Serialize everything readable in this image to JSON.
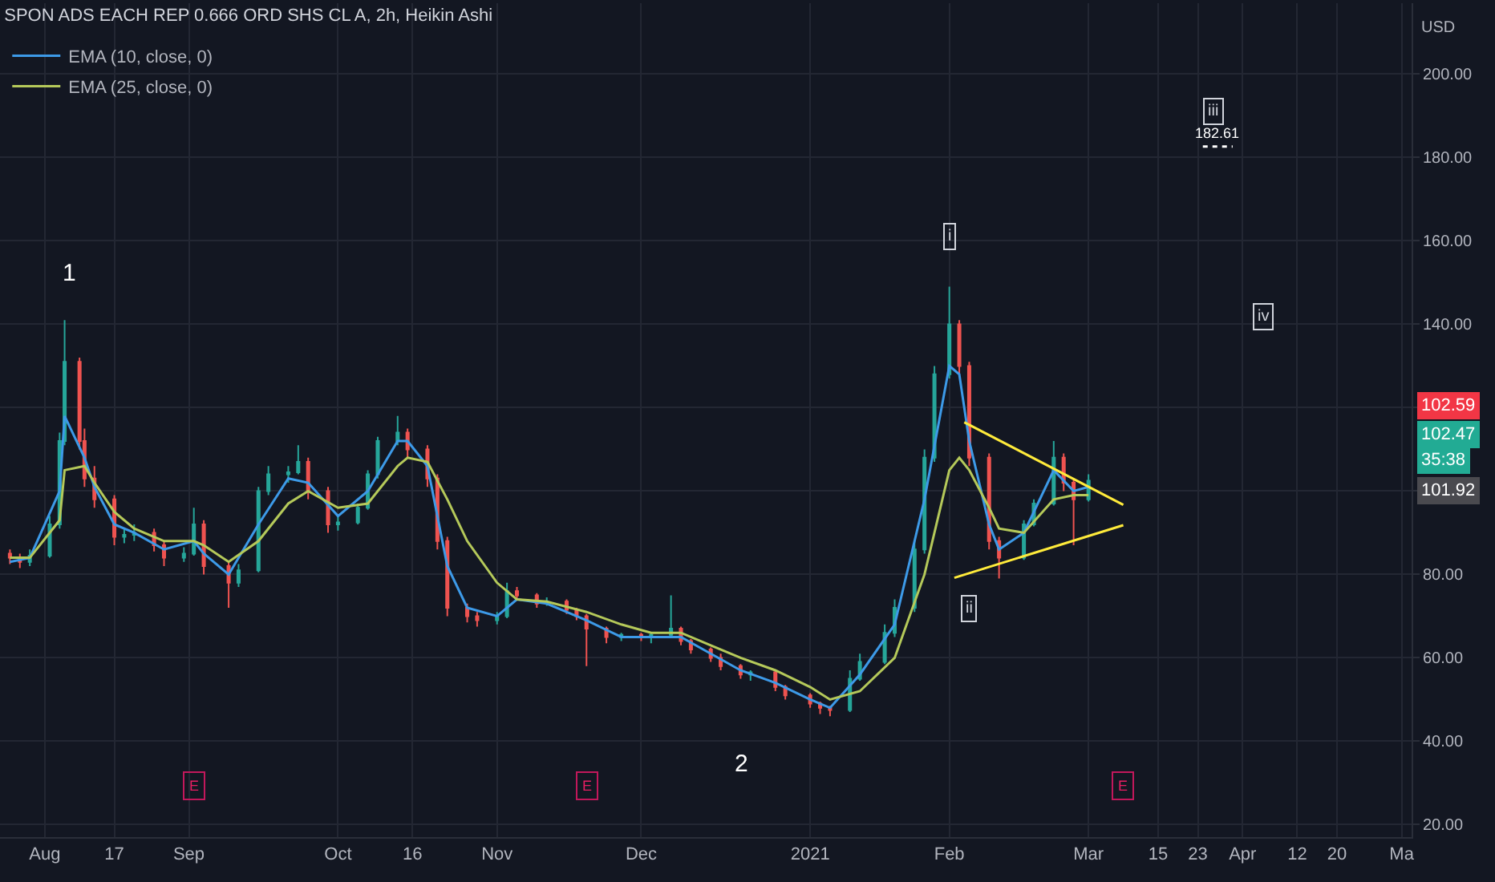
{
  "chart_data": {
    "type": "candlestick",
    "title": "SPON ADS EACH REP 0.666 ORD SHS CL A, 2h, Heikin Ashi",
    "x": [
      "2020-07-27",
      "2020-07-29",
      "2020-07-31",
      "2020-08-04",
      "2020-08-06",
      "2020-08-07",
      "2020-08-10",
      "2020-08-11",
      "2020-08-13",
      "2020-08-17",
      "2020-08-19",
      "2020-08-21",
      "2020-08-25",
      "2020-08-27",
      "2020-08-31",
      "2020-09-02",
      "2020-09-04",
      "2020-09-09",
      "2020-09-11",
      "2020-09-15",
      "2020-09-17",
      "2020-09-21",
      "2020-09-23",
      "2020-09-25",
      "2020-09-29",
      "2020-10-01",
      "2020-10-05",
      "2020-10-07",
      "2020-10-09",
      "2020-10-13",
      "2020-10-15",
      "2020-10-19",
      "2020-10-21",
      "2020-10-23",
      "2020-10-27",
      "2020-10-29",
      "2020-11-02",
      "2020-11-04",
      "2020-11-06",
      "2020-11-10",
      "2020-11-12",
      "2020-11-16",
      "2020-11-18",
      "2020-11-20",
      "2020-11-24",
      "2020-11-27",
      "2020-12-01",
      "2020-12-03",
      "2020-12-07",
      "2020-12-09",
      "2020-12-11",
      "2020-12-15",
      "2020-12-17",
      "2020-12-21",
      "2020-12-23",
      "2020-12-28",
      "2020-12-30",
      "2021-01-04",
      "2021-01-06",
      "2021-01-08",
      "2021-01-12",
      "2021-01-14",
      "2021-01-19",
      "2021-01-21",
      "2021-01-25",
      "2021-01-27",
      "2021-01-29",
      "2021-02-01",
      "2021-02-03",
      "2021-02-05",
      "2021-02-09",
      "2021-02-11",
      "2021-02-16",
      "2021-02-18",
      "2021-02-22",
      "2021-02-24",
      "2021-02-26",
      "2021-03-01"
    ],
    "ohlc": [
      [
        85,
        86,
        82.5,
        84
      ],
      [
        84,
        85,
        81.5,
        83
      ],
      [
        83,
        86,
        82,
        84.5
      ],
      [
        84.5,
        94,
        84,
        92
      ],
      [
        92,
        114,
        91,
        112
      ],
      [
        112,
        141,
        111,
        131
      ],
      [
        131,
        132,
        110,
        112
      ],
      [
        112,
        115,
        101,
        103
      ],
      [
        103,
        106,
        96,
        98
      ],
      [
        98,
        99,
        87,
        89
      ],
      [
        89,
        91,
        87.5,
        89.5
      ],
      [
        89.5,
        92,
        88,
        90
      ],
      [
        90,
        91,
        85.5,
        87
      ],
      [
        87,
        88,
        82,
        84
      ],
      [
        84,
        86.5,
        83,
        85
      ],
      [
        85,
        96,
        84.5,
        92
      ],
      [
        92,
        93,
        80,
        82
      ],
      [
        82,
        83,
        72,
        78
      ],
      [
        78,
        82.5,
        77,
        81
      ],
      [
        81,
        101,
        80.5,
        100
      ],
      [
        100,
        106,
        99,
        104
      ],
      [
        104,
        106,
        102,
        104.5
      ],
      [
        104.5,
        111,
        104,
        107
      ],
      [
        107,
        108,
        98,
        100
      ],
      [
        100,
        101,
        90,
        92
      ],
      [
        92,
        94,
        90.5,
        92.5
      ],
      [
        92.5,
        97,
        92,
        96
      ],
      [
        96,
        105,
        95.5,
        104
      ],
      [
        104,
        113,
        103,
        112
      ],
      [
        112,
        118,
        111,
        114
      ],
      [
        114,
        115,
        108,
        110
      ],
      [
        110,
        111,
        101,
        103
      ],
      [
        103,
        104,
        86,
        88
      ],
      [
        88,
        89,
        70,
        72
      ],
      [
        72,
        73,
        68.5,
        70
      ],
      [
        70,
        71,
        67.5,
        69
      ],
      [
        69,
        71,
        68,
        70
      ],
      [
        70,
        78,
        69.5,
        76
      ],
      [
        76,
        77,
        74,
        75
      ],
      [
        75,
        75.5,
        72,
        73
      ],
      [
        73,
        74.5,
        72.5,
        73.5
      ],
      [
        73.5,
        74,
        70.5,
        71.5
      ],
      [
        71.5,
        72,
        69,
        70
      ],
      [
        70,
        70.5,
        58,
        67
      ],
      [
        67,
        67.5,
        63.5,
        65
      ],
      [
        65,
        66,
        64,
        65.5
      ],
      [
        65.5,
        66,
        64,
        65
      ],
      [
        65,
        66,
        63.5,
        65.5
      ],
      [
        65.5,
        75,
        65,
        67
      ],
      [
        67,
        67.5,
        63,
        64
      ],
      [
        64,
        64.5,
        61,
        62
      ],
      [
        62,
        62.5,
        59,
        60
      ],
      [
        60,
        61,
        57,
        58
      ],
      [
        58,
        58.5,
        55,
        56
      ],
      [
        56,
        57,
        54.5,
        56.5
      ],
      [
        56.5,
        57,
        52,
        53
      ],
      [
        53,
        53.5,
        50,
        51
      ],
      [
        51,
        51.5,
        48,
        49
      ],
      [
        49,
        49.5,
        46.5,
        48
      ],
      [
        48,
        48.5,
        46,
        47.5
      ],
      [
        47.5,
        57,
        47,
        55
      ],
      [
        55,
        61,
        54.5,
        59
      ],
      [
        59,
        68,
        58.5,
        66
      ],
      [
        66,
        74,
        65,
        72
      ],
      [
        72,
        88,
        71,
        86
      ],
      [
        86,
        110,
        85,
        108
      ],
      [
        108,
        130,
        107,
        128
      ],
      [
        128,
        149,
        127,
        140
      ],
      [
        140,
        141,
        128,
        130
      ],
      [
        130,
        131,
        106,
        108
      ],
      [
        108,
        109,
        86,
        88
      ],
      [
        88,
        89,
        79,
        84
      ],
      [
        84,
        93,
        83.5,
        92
      ],
      [
        92,
        98,
        91.5,
        97
      ],
      [
        97,
        112,
        96.5,
        108
      ],
      [
        108,
        109,
        100,
        102
      ],
      [
        102,
        103,
        87,
        98
      ],
      [
        98,
        104,
        97.5,
        102.47
      ]
    ],
    "colors": [
      "#ef5350",
      "#ef5350",
      "#26a69a",
      "#26a69a",
      "#26a69a",
      "#26a69a",
      "#ef5350",
      "#ef5350",
      "#ef5350",
      "#ef5350",
      "#26a69a",
      "#26a69a",
      "#ef5350",
      "#ef5350",
      "#26a69a",
      "#26a69a",
      "#ef5350",
      "#ef5350",
      "#26a69a",
      "#26a69a",
      "#26a69a",
      "#26a69a",
      "#26a69a",
      "#ef5350",
      "#ef5350",
      "#26a69a",
      "#26a69a",
      "#26a69a",
      "#26a69a",
      "#26a69a",
      "#ef5350",
      "#ef5350",
      "#ef5350",
      "#ef5350",
      "#ef5350",
      "#ef5350",
      "#26a69a",
      "#26a69a",
      "#ef5350",
      "#ef5350",
      "#26a69a",
      "#ef5350",
      "#ef5350",
      "#ef5350",
      "#ef5350",
      "#26a69a",
      "#ef5350",
      "#26a69a",
      "#26a69a",
      "#ef5350",
      "#ef5350",
      "#ef5350",
      "#ef5350",
      "#ef5350",
      "#26a69a",
      "#ef5350",
      "#ef5350",
      "#ef5350",
      "#ef5350",
      "#ef5350",
      "#26a69a",
      "#26a69a",
      "#26a69a",
      "#26a69a",
      "#26a69a",
      "#26a69a",
      "#26a69a",
      "#26a69a",
      "#ef5350",
      "#ef5350",
      "#ef5350",
      "#ef5350",
      "#26a69a",
      "#26a69a",
      "#26a69a",
      "#ef5350",
      "#ef5350",
      "#26a69a"
    ],
    "series": [
      {
        "name": "EMA (10, close, 0)",
        "type": "line",
        "color": "#3d9ae8",
        "x": [
          "2020-07-27",
          "2020-07-31",
          "2020-08-06",
          "2020-08-07",
          "2020-08-11",
          "2020-08-13",
          "2020-08-17",
          "2020-08-21",
          "2020-08-27",
          "2020-09-02",
          "2020-09-04",
          "2020-09-09",
          "2020-09-15",
          "2020-09-21",
          "2020-09-25",
          "2020-10-01",
          "2020-10-07",
          "2020-10-13",
          "2020-10-15",
          "2020-10-19",
          "2020-10-23",
          "2020-10-27",
          "2020-11-02",
          "2020-11-06",
          "2020-11-12",
          "2020-11-20",
          "2020-11-27",
          "2020-12-03",
          "2020-12-09",
          "2020-12-15",
          "2020-12-21",
          "2020-12-28",
          "2021-01-04",
          "2021-01-08",
          "2021-01-14",
          "2021-01-21",
          "2021-01-27",
          "2021-02-01",
          "2021-02-03",
          "2021-02-05",
          "2021-02-09",
          "2021-02-11",
          "2021-02-16",
          "2021-02-22",
          "2021-02-26",
          "2021-03-01"
        ],
        "values": [
          83,
          84,
          100,
          118,
          108,
          101,
          92,
          90,
          86,
          88,
          85,
          80,
          92,
          103,
          102,
          94,
          100,
          112,
          112,
          106,
          82,
          72,
          70,
          74,
          73,
          69,
          65,
          65,
          65,
          61,
          57,
          54,
          50,
          48,
          56,
          68,
          98,
          130,
          128,
          112,
          92,
          86,
          90,
          105,
          100,
          101
        ]
      },
      {
        "name": "EMA (25, close, 0)",
        "type": "line",
        "color": "#b5c95a",
        "x": [
          "2020-07-27",
          "2020-07-31",
          "2020-08-06",
          "2020-08-07",
          "2020-08-11",
          "2020-08-13",
          "2020-08-17",
          "2020-08-21",
          "2020-08-27",
          "2020-09-02",
          "2020-09-04",
          "2020-09-09",
          "2020-09-15",
          "2020-09-21",
          "2020-09-25",
          "2020-10-01",
          "2020-10-07",
          "2020-10-13",
          "2020-10-15",
          "2020-10-19",
          "2020-10-23",
          "2020-10-27",
          "2020-11-02",
          "2020-11-06",
          "2020-11-12",
          "2020-11-20",
          "2020-11-27",
          "2020-12-03",
          "2020-12-09",
          "2020-12-15",
          "2020-12-21",
          "2020-12-28",
          "2021-01-04",
          "2021-01-08",
          "2021-01-14",
          "2021-01-21",
          "2021-01-27",
          "2021-02-01",
          "2021-02-03",
          "2021-02-05",
          "2021-02-09",
          "2021-02-11",
          "2021-02-16",
          "2021-02-22",
          "2021-02-26",
          "2021-03-01"
        ],
        "values": [
          84,
          84,
          93,
          105,
          106,
          102,
          95,
          91,
          88,
          88,
          87,
          83,
          88,
          97,
          100,
          96,
          97,
          106,
          108,
          107,
          98,
          88,
          78,
          74,
          73.5,
          71,
          68,
          66,
          66,
          63,
          60,
          57,
          53,
          50,
          52,
          60,
          80,
          105,
          108,
          105,
          96,
          91,
          90,
          98,
          99,
          99
        ]
      },
      {
        "type": "line",
        "color": "#ffeb3b",
        "x": [
          "2021-02-04",
          "2021-03-08"
        ],
        "values": [
          116.5,
          96.7
        ]
      },
      {
        "type": "line",
        "color": "#ffeb3b",
        "x": [
          "2021-02-02",
          "2021-03-08"
        ],
        "values": [
          79.2,
          91.8
        ]
      },
      {
        "type": "line",
        "color": "#ffffff",
        "line_style": "dotted",
        "x": [
          "2021-03-24",
          "2021-03-30"
        ],
        "values": [
          182.61,
          182.61
        ]
      }
    ],
    "xlim": [
      "2020-07-25",
      "2021-05-05"
    ],
    "xticks": [
      {
        "value": "2020-08-03",
        "label": "Aug"
      },
      {
        "value": "2020-08-17",
        "label": "17"
      },
      {
        "value": "2020-09-01",
        "label": "Sep"
      },
      {
        "value": "2020-10-01",
        "label": "Oct"
      },
      {
        "value": "2020-10-16",
        "label": "16"
      },
      {
        "value": "2020-11-02",
        "label": "Nov"
      },
      {
        "value": "2020-12-01",
        "label": "Dec"
      },
      {
        "value": "2021-01-04",
        "label": "2021"
      },
      {
        "value": "2021-02-01",
        "label": "Feb"
      },
      {
        "value": "2021-03-01",
        "label": "Mar"
      },
      {
        "value": "2021-03-15",
        "label": "15"
      },
      {
        "value": "2021-03-23",
        "label": "23"
      },
      {
        "value": "2021-04-01",
        "label": "Apr"
      },
      {
        "value": "2021-04-12",
        "label": "12"
      },
      {
        "value": "2021-04-20",
        "label": "20"
      },
      {
        "value": "2021-05-03",
        "label": "Ma"
      }
    ],
    "ylim": [
      17,
      217
    ],
    "yticks": [
      {
        "value": 20,
        "label": "20.00"
      },
      {
        "value": 40,
        "label": "40.00"
      },
      {
        "value": 60,
        "label": "60.00"
      },
      {
        "value": 80,
        "label": "80.00"
      },
      {
        "value": 100,
        "label": null
      },
      {
        "value": 120,
        "label": null
      },
      {
        "value": 140,
        "label": "140.00"
      },
      {
        "value": 160,
        "label": "160.00"
      },
      {
        "value": 180,
        "label": "180.00"
      },
      {
        "value": 200,
        "label": "200.00"
      }
    ],
    "annotations": [
      "USD",
      "102.59",
      "102.47",
      "35:38",
      "101.92",
      "1",
      "2",
      {
        "text": "i",
        "x": "2021-02-01",
        "y": 161
      },
      {
        "text": "ii",
        "x": "2021-02-05",
        "y": 72
      },
      {
        "text": "iii",
        "x": "2021-03-26",
        "y": 191
      },
      {
        "text": "iv",
        "x": "2021-04-05",
        "y": 142
      },
      {
        "text": "182.61",
        "x": "2021-03-27",
        "y": 182.61
      },
      {
        "text": "E",
        "x": "2020-09-02"
      },
      {
        "text": "E",
        "x": "2020-11-20"
      },
      {
        "text": "E",
        "x": "2021-03-08"
      }
    ],
    "grid": true,
    "legend": "top left",
    "marker": "none"
  }
}
